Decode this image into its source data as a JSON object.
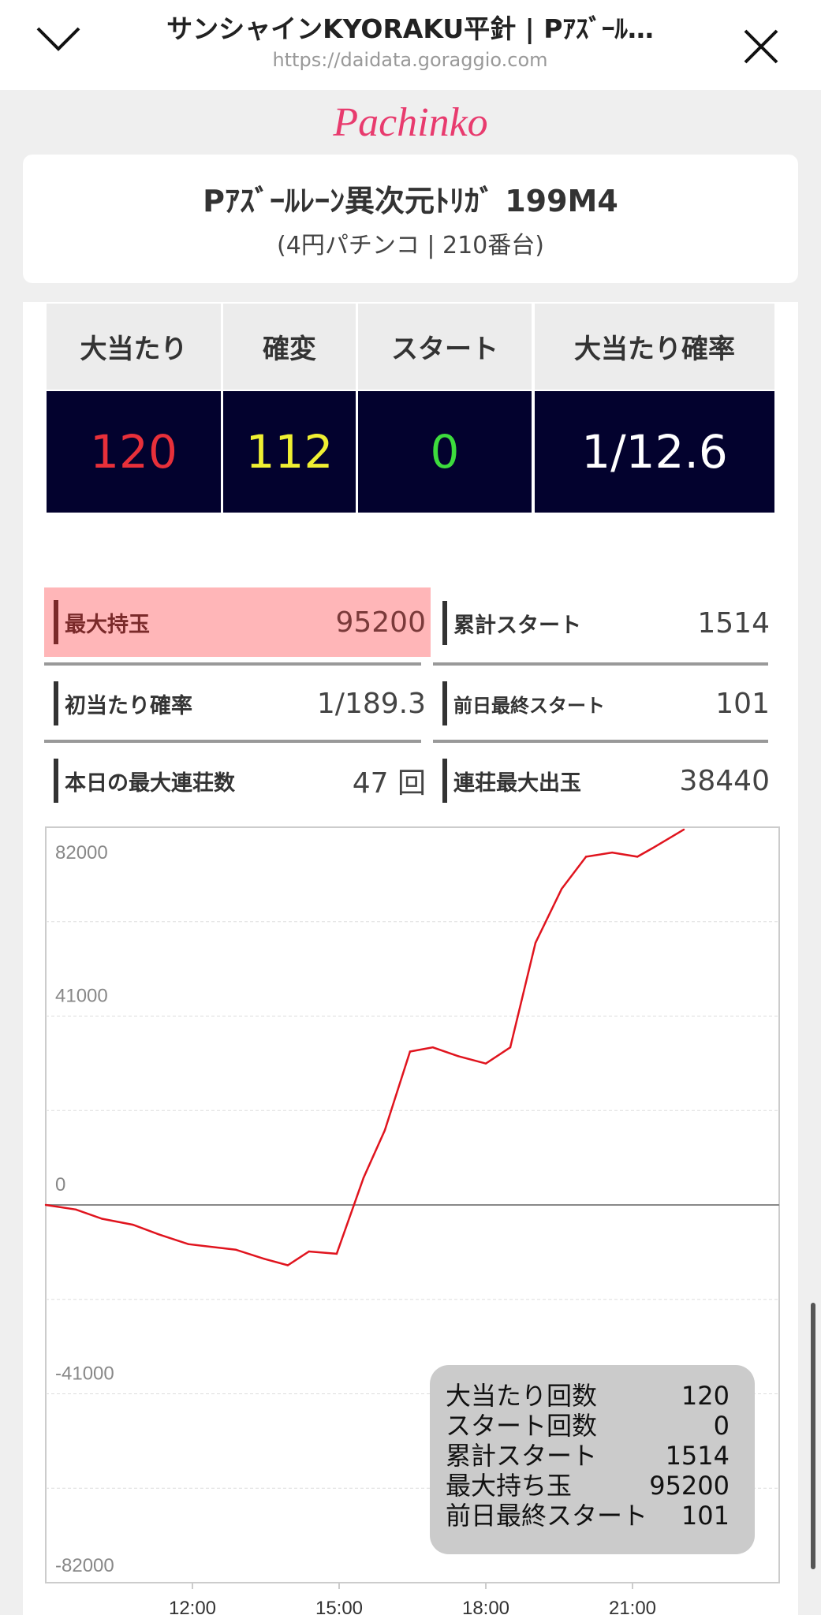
{
  "browser": {
    "title": "サンシャインKYORAKU平針 | Pｱｽﾞｰﾙ…",
    "url": "https://daidata.goraggio.com",
    "collapse_icon": "chevron-down-icon",
    "close_icon": "close-icon"
  },
  "brand": "Pachinko",
  "machine": {
    "name": "Pｱｽﾞｰﾙﾚｰﾝ異次元ﾄﾘｶﾞ 199M4",
    "subtitle": "(4円パチンコ | 210番台)"
  },
  "summary": [
    {
      "label": "大当たり",
      "value": "120",
      "color": "#e8303a"
    },
    {
      "label": "確変",
      "value": "112",
      "color": "#f0f032"
    },
    {
      "label": "スタート",
      "value": "0",
      "color": "#3ddc3d"
    },
    {
      "label": "大当たり確率",
      "value": "1/12.6",
      "color": "#ffffff"
    }
  ],
  "stats": [
    {
      "label": "最大持玉",
      "value": "95200",
      "highlight": "#ffb6b8"
    },
    {
      "label": "累計スタート",
      "value": "1514"
    },
    {
      "label": "初当たり確率",
      "value": "1/189.3"
    },
    {
      "label": "前日最終スタート",
      "value": "101"
    },
    {
      "label": "本日の最大連荘数",
      "value": "47 回"
    },
    {
      "label": "連荘最大出玉",
      "value": "38440"
    }
  ],
  "chart_data": {
    "type": "line",
    "xlim": [
      "9:00",
      "24:00"
    ],
    "ylim": [
      -82000,
      82000
    ],
    "x_ticks": [
      "12:00",
      "15:00",
      "18:00",
      "21:00"
    ],
    "y_ticks": [
      "82000",
      "41000",
      "0",
      "-41000",
      "-82000"
    ],
    "grid": true,
    "line_color": "#e0141e",
    "series": [
      {
        "x": [
          "9:00",
          "9:37",
          "10:09",
          "10:47",
          "11:19",
          "11:55",
          "12:53",
          "13:28",
          "13:57",
          "14:23",
          "14:57",
          "15:30",
          "15:56",
          "16:27",
          "16:55",
          "17:26",
          "18:00",
          "18:30",
          "19:01",
          "19:33",
          "20:03",
          "20:35",
          "21:06",
          "21:24",
          "22:03"
        ],
        "y": [
          0,
          -1000,
          -3000,
          -4300,
          -6400,
          -8500,
          -9700,
          -11700,
          -13100,
          -10100,
          -10600,
          5900,
          16200,
          33300,
          34200,
          32300,
          30700,
          34200,
          56900,
          68600,
          75600,
          76500,
          75600,
          77400,
          81500
        ]
      }
    ],
    "legend_box": [
      {
        "label": "大当たり回数",
        "value": "120"
      },
      {
        "label": "スタート回数",
        "value": "0"
      },
      {
        "label": "累計スタート",
        "value": "1514"
      },
      {
        "label": "最大持ち玉",
        "value": "95200"
      },
      {
        "label": "前日最終スタート",
        "value": "101"
      }
    ]
  }
}
